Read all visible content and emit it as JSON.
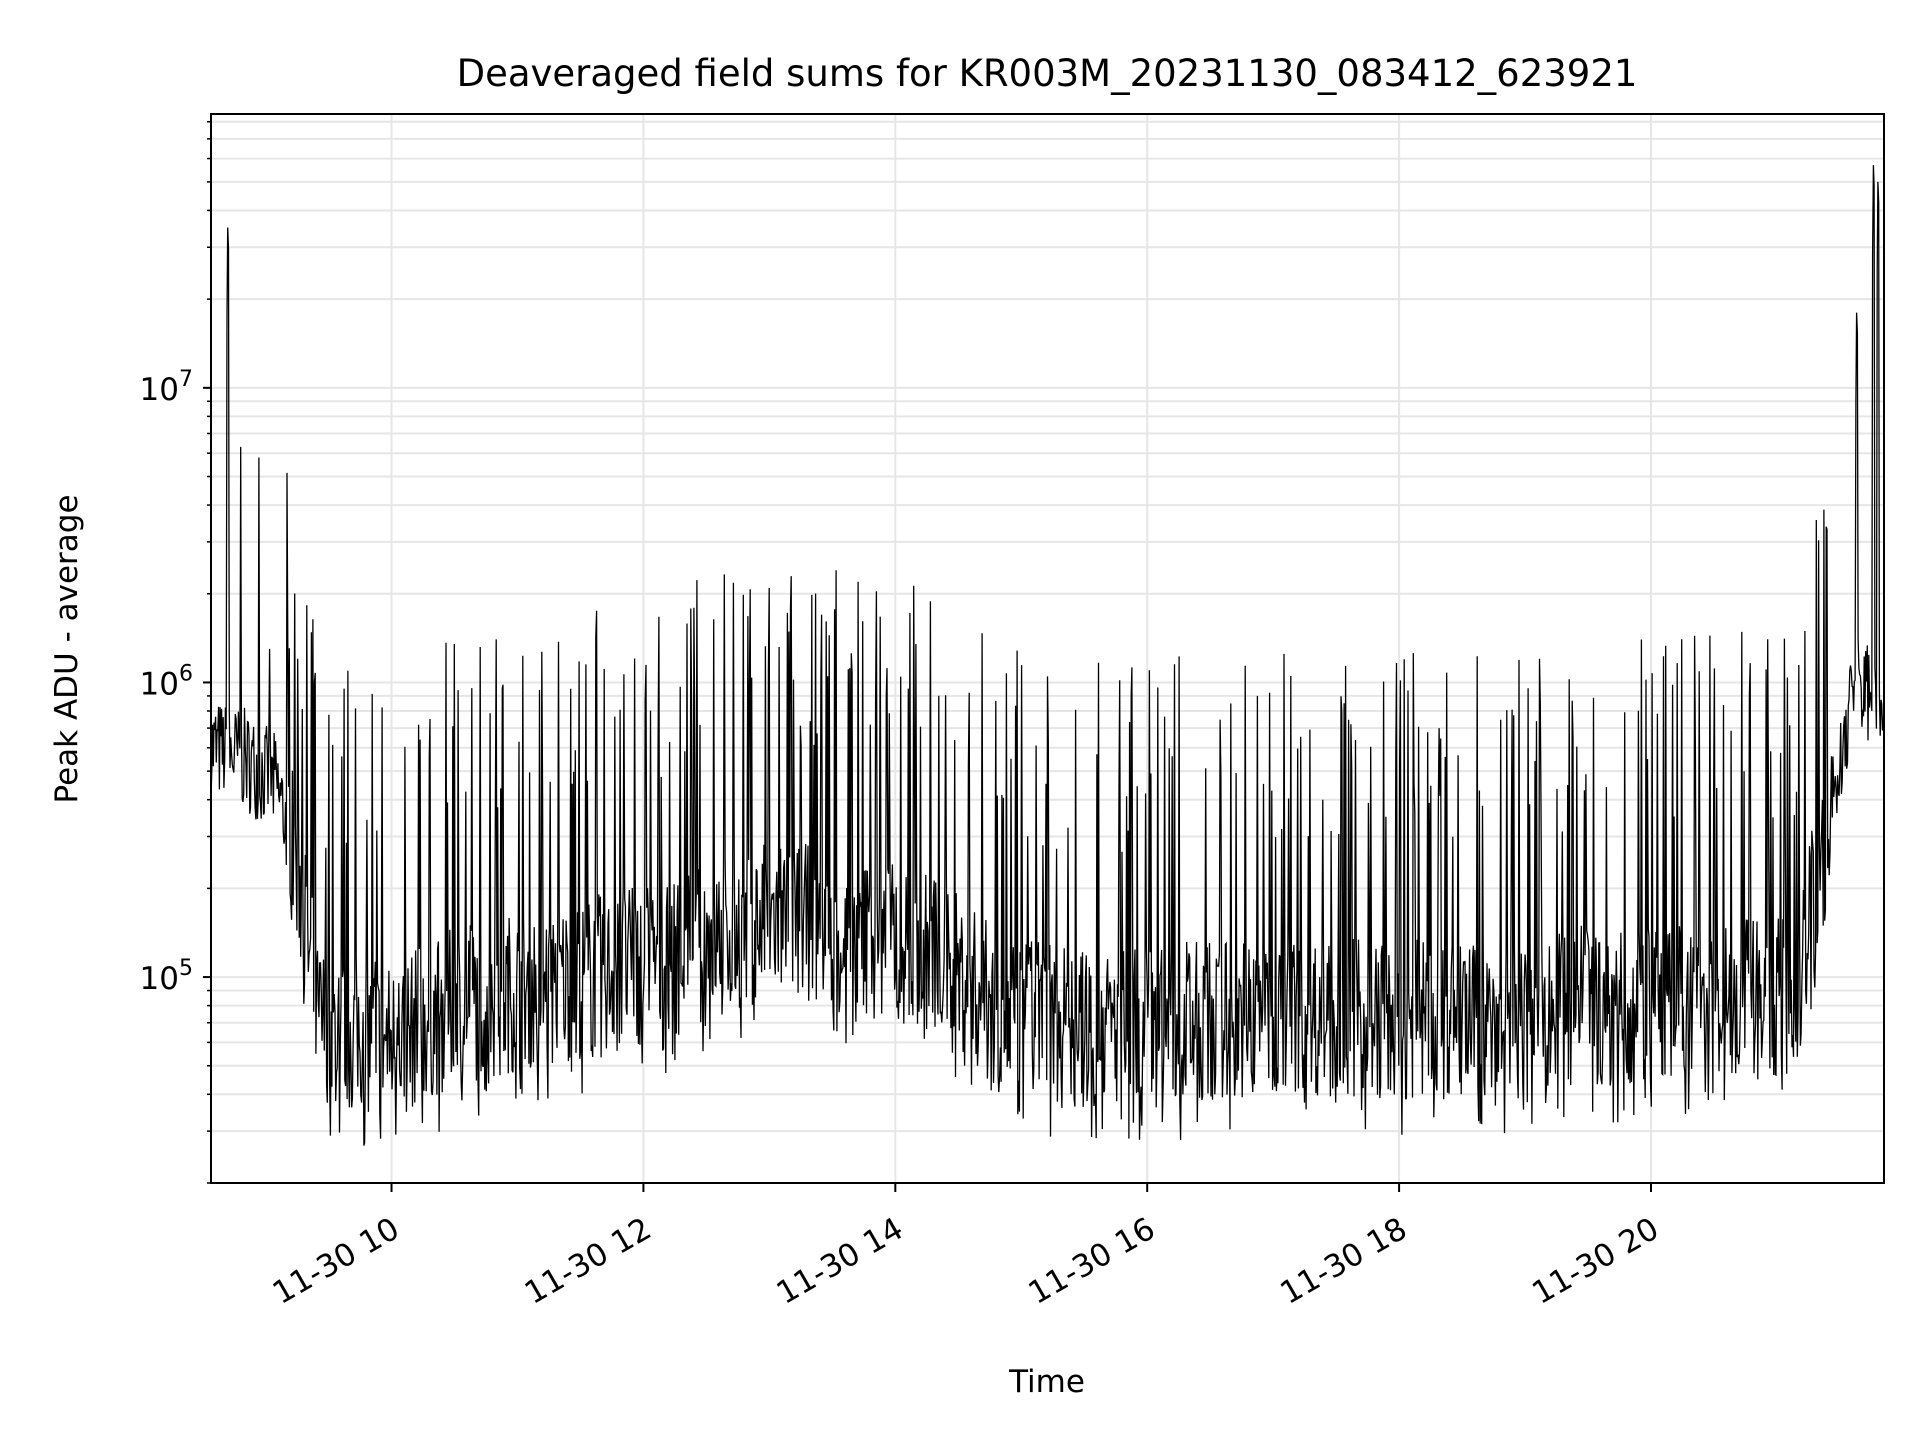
{
  "chart_data": {
    "type": "line",
    "title": "Deaveraged field sums for KR003M_20231130_083412_623921",
    "xlabel": "Time",
    "ylabel": "Peak ADU - average",
    "yscale": "log",
    "ylim": [
      20000,
      85000000
    ],
    "xlim": [
      "2023-11-30 08:34",
      "2023-11-30 21:51"
    ],
    "x_ticks": [
      {
        "value": "2023-11-30 10:00",
        "label": "11-30 10"
      },
      {
        "value": "2023-11-30 12:00",
        "label": "11-30 12"
      },
      {
        "value": "2023-11-30 14:00",
        "label": "11-30 14"
      },
      {
        "value": "2023-11-30 16:00",
        "label": "11-30 16"
      },
      {
        "value": "2023-11-30 18:00",
        "label": "11-30 18"
      },
      {
        "value": "2023-11-30 20:00",
        "label": "11-30 20"
      }
    ],
    "y_ticks": [
      {
        "value": 100000,
        "base": "10",
        "exp": "5"
      },
      {
        "value": 1000000,
        "base": "10",
        "exp": "6"
      },
      {
        "value": 10000000,
        "base": "10",
        "exp": "7"
      }
    ],
    "grid": true,
    "line_color": "#000000",
    "grid_color": "#e6e6e6",
    "series": [
      {
        "description": "approximate envelope of the dense noisy trace",
        "baseline": [
          {
            "x": "2023-11-30 08:34",
            "y": 600000
          },
          {
            "x": "2023-11-30 08:50",
            "y": 550000
          },
          {
            "x": "2023-11-30 09:05",
            "y": 450000
          },
          {
            "x": "2023-11-30 09:15",
            "y": 250000
          },
          {
            "x": "2023-11-30 09:25",
            "y": 70000
          },
          {
            "x": "2023-11-30 10:00",
            "y": 60000
          },
          {
            "x": "2023-11-30 10:30",
            "y": 80000
          },
          {
            "x": "2023-11-30 11:00",
            "y": 90000
          },
          {
            "x": "2023-11-30 12:00",
            "y": 110000
          },
          {
            "x": "2023-11-30 12:40",
            "y": 140000
          },
          {
            "x": "2023-11-30 13:00",
            "y": 160000
          },
          {
            "x": "2023-11-30 13:40",
            "y": 140000
          },
          {
            "x": "2023-11-30 14:20",
            "y": 120000
          },
          {
            "x": "2023-11-30 14:50",
            "y": 75000
          },
          {
            "x": "2023-11-30 15:30",
            "y": 65000
          },
          {
            "x": "2023-11-30 17:00",
            "y": 75000
          },
          {
            "x": "2023-11-30 18:30",
            "y": 70000
          },
          {
            "x": "2023-11-30 19:30",
            "y": 80000
          },
          {
            "x": "2023-11-30 21:10",
            "y": 85000
          },
          {
            "x": "2023-11-30 21:22",
            "y": 300000
          },
          {
            "x": "2023-11-30 21:30",
            "y": 500000
          },
          {
            "x": "2023-11-30 21:36",
            "y": 1000000
          },
          {
            "x": "2023-11-30 21:51",
            "y": 900000
          }
        ],
        "spikes": [
          {
            "x": "2023-11-30 08:42",
            "y": 35000000
          },
          {
            "x": "2023-11-30 08:48",
            "y": 6300000
          },
          {
            "x": "2023-11-30 08:57",
            "y": 5800000
          },
          {
            "x": "2023-11-30 09:02",
            "y": 1300000
          },
          {
            "x": "2023-11-30 10:30",
            "y": 1350000
          },
          {
            "x": "2023-11-30 10:50",
            "y": 1400000
          },
          {
            "x": "2023-11-30 13:25",
            "y": 1700000
          },
          {
            "x": "2023-11-30 14:10",
            "y": 1350000
          },
          {
            "x": "2023-11-30 17:05",
            "y": 1250000
          },
          {
            "x": "2023-11-30 21:38",
            "y": 18000000
          },
          {
            "x": "2023-11-30 21:46",
            "y": 57000000
          },
          {
            "x": "2023-11-30 21:48",
            "y": 50000000
          }
        ]
      }
    ]
  }
}
